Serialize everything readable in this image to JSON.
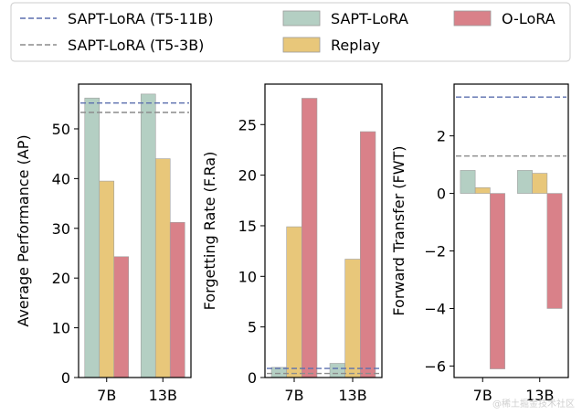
{
  "legend": {
    "entries": [
      {
        "label": "SAPT-LoRA (T5-11B)",
        "kind": "line",
        "color": "#5b6fae",
        "dash": "dashed"
      },
      {
        "label": "SAPT-LoRA (T5-3B)",
        "kind": "line",
        "color": "#8c8c8c",
        "dash": "dashed"
      },
      {
        "label": "SAPT-LoRA",
        "kind": "patch",
        "color": "#b4cfc3"
      },
      {
        "label": "Replay",
        "kind": "patch",
        "color": "#e8c77a"
      },
      {
        "label": "O-LoRA",
        "kind": "patch",
        "color": "#d98189"
      }
    ]
  },
  "watermark": "@稀土掘金技术社区",
  "chart_data": [
    {
      "type": "bar",
      "categories": [
        "7B",
        "13B"
      ],
      "ylabel": "Average Performance (AP)",
      "ylim": [
        0,
        59
      ],
      "yticks": [
        0,
        10,
        20,
        30,
        40,
        50
      ],
      "series": [
        {
          "name": "SAPT-LoRA",
          "values": [
            56.2,
            57.0
          ],
          "color": "#b4cfc3"
        },
        {
          "name": "Replay",
          "values": [
            39.5,
            44.0
          ],
          "color": "#e8c77a"
        },
        {
          "name": "O-LoRA",
          "values": [
            24.3,
            31.2
          ],
          "color": "#d98189"
        }
      ],
      "reference_lines": [
        {
          "name": "SAPT-LoRA (T5-11B)",
          "value": 55.2,
          "color": "#5b6fae"
        },
        {
          "name": "SAPT-LoRA (T5-3B)",
          "value": 53.3,
          "color": "#8c8c8c"
        }
      ]
    },
    {
      "type": "bar",
      "categories": [
        "7B",
        "13B"
      ],
      "ylabel": "Forgetting Rate (F.Ra)",
      "ylim": [
        0,
        29
      ],
      "yticks": [
        0,
        5,
        10,
        15,
        20,
        25
      ],
      "series": [
        {
          "name": "SAPT-LoRA",
          "values": [
            1.0,
            1.4
          ],
          "color": "#b4cfc3"
        },
        {
          "name": "Replay",
          "values": [
            14.9,
            11.7
          ],
          "color": "#e8c77a"
        },
        {
          "name": "O-LoRA",
          "values": [
            27.6,
            24.3
          ],
          "color": "#d98189"
        }
      ],
      "reference_lines": [
        {
          "name": "SAPT-LoRA (T5-11B)",
          "value": 0.9,
          "color": "#5b6fae"
        },
        {
          "name": "SAPT-LoRA (T5-3B)",
          "value": 0.4,
          "color": "#8c8c8c"
        }
      ]
    },
    {
      "type": "bar",
      "categories": [
        "7B",
        "13B"
      ],
      "ylabel": "Forward Transfer (FWT)",
      "ylim": [
        -6.4,
        3.8
      ],
      "yticks": [
        -6,
        -4,
        -2,
        0,
        2
      ],
      "series": [
        {
          "name": "SAPT-LoRA",
          "values": [
            0.8,
            0.8
          ],
          "color": "#b4cfc3"
        },
        {
          "name": "Replay",
          "values": [
            0.2,
            0.7
          ],
          "color": "#e8c77a"
        },
        {
          "name": "O-LoRA",
          "values": [
            -6.1,
            -4.0
          ],
          "color": "#d98189"
        }
      ],
      "reference_lines": [
        {
          "name": "SAPT-LoRA (T5-11B)",
          "value": 3.35,
          "color": "#5b6fae"
        },
        {
          "name": "SAPT-LoRA (T5-3B)",
          "value": 1.3,
          "color": "#8c8c8c"
        }
      ]
    }
  ]
}
